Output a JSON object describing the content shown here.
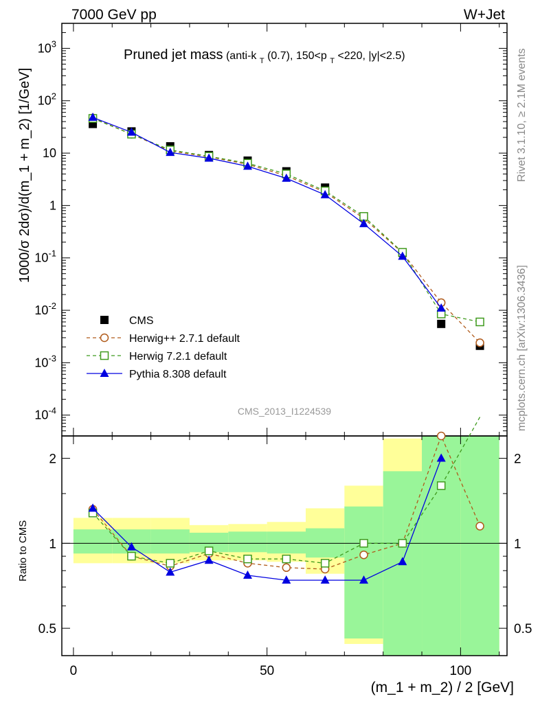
{
  "header": {
    "left": "7000 GeV pp",
    "right": "W+Jet"
  },
  "title": {
    "main": "Pruned jet mass",
    "sub_prefix": "(anti-k",
    "sub_k_sub": "T",
    "sub_mid": "(0.7), 150<p",
    "sub_pt_sub": "T",
    "sub_suffix": "<220, |y|<2.5)"
  },
  "side_labels": {
    "rivet": "Rivet 3.1.10, ≥ 2.1M events",
    "mcplots": "mcplots.cern.ch [arXiv:1306.3436]"
  },
  "watermark": "CMS_2013_I1224539",
  "axes": {
    "ylabel_main": "1000/σ 2dσ)/d(m_1 + m_2) [1/GeV]",
    "ylabel_ratio": "Ratio to CMS",
    "xlabel": "(m_1 + m_2) / 2 [GeV]"
  },
  "legend": [
    {
      "label": "CMS",
      "color": "#000000",
      "marker": "square-filled"
    },
    {
      "label": "Herwig++ 2.7.1 default",
      "color": "#b05a1a",
      "marker": "circle-open"
    },
    {
      "label": "Herwig 7.2.1 default",
      "color": "#3f9a1d",
      "marker": "square-open"
    },
    {
      "label": "Pythia 8.308 default",
      "color": "#0000e0",
      "marker": "triangle-filled"
    }
  ],
  "chart_data": {
    "type": "scatter",
    "x": [
      5,
      15,
      25,
      35,
      45,
      55,
      65,
      75,
      85,
      95,
      105
    ],
    "bin_edges": [
      0,
      10,
      20,
      30,
      40,
      50,
      60,
      70,
      80,
      90,
      100,
      110
    ],
    "xlim": [
      -3,
      112
    ],
    "main": {
      "yscale": "log",
      "ylim": [
        4e-05,
        3000
      ],
      "y_ticks": [
        "10^3",
        "10^2",
        "10",
        "1",
        "10^-1",
        "10^-2",
        "10^-3",
        "10^-4"
      ],
      "series": [
        {
          "name": "CMS",
          "values": [
            36,
            26,
            13.5,
            9.2,
            7.2,
            4.5,
            2.2,
            0.62,
            0.125,
            0.0055,
            0.0021
          ]
        },
        {
          "name": "Herwig++ 2.7.1 default",
          "values": [
            47,
            23,
            11,
            8.5,
            6.1,
            3.7,
            1.8,
            0.57,
            0.125,
            0.014,
            0.0024
          ]
        },
        {
          "name": "Herwig 7.2.1 default",
          "values": [
            46,
            23,
            11.5,
            8.7,
            6.4,
            4.0,
            1.9,
            0.62,
            0.128,
            0.0085,
            0.006
          ]
        },
        {
          "name": "Pythia 8.308 default",
          "values": [
            48,
            25,
            10.3,
            8.0,
            5.6,
            3.3,
            1.6,
            0.45,
            0.107,
            0.011,
            null
          ]
        }
      ]
    },
    "ratio": {
      "yscale": "log",
      "ylim": [
        0.4,
        2.4
      ],
      "y_ticks": [
        0.5,
        1,
        2
      ],
      "x_ticks": [
        0,
        50,
        100
      ],
      "band_inner": [
        [
          0.92,
          1.12
        ],
        [
          0.92,
          1.12
        ],
        [
          0.92,
          1.12
        ],
        [
          0.93,
          1.09
        ],
        [
          0.93,
          1.1
        ],
        [
          0.92,
          1.1
        ],
        [
          0.89,
          1.13
        ],
        [
          0.46,
          1.35
        ],
        [
          0.4,
          1.8
        ],
        [
          0.4,
          2.4
        ],
        [
          0.4,
          2.4
        ]
      ],
      "band_outer": [
        [
          0.85,
          1.23
        ],
        [
          0.85,
          1.23
        ],
        [
          0.85,
          1.23
        ],
        [
          0.87,
          1.16
        ],
        [
          0.87,
          1.17
        ],
        [
          0.86,
          1.19
        ],
        [
          0.78,
          1.33
        ],
        [
          0.44,
          1.6
        ],
        [
          0.4,
          2.35
        ],
        [
          0.4,
          2.4
        ],
        [
          0.4,
          2.2
        ]
      ],
      "series": [
        {
          "name": "Herwig++ 2.7.1 default",
          "values": [
            1.32,
            0.9,
            0.83,
            0.92,
            0.85,
            0.82,
            0.81,
            0.91,
            1.0,
            2.4,
            1.15
          ]
        },
        {
          "name": "Herwig 7.2.1 default",
          "values": [
            1.28,
            0.9,
            0.85,
            0.94,
            0.88,
            0.88,
            0.85,
            1.0,
            1.0,
            1.6,
            2.8
          ]
        },
        {
          "name": "Pythia 8.308 default",
          "values": [
            1.33,
            0.97,
            0.79,
            0.87,
            0.77,
            0.74,
            0.74,
            0.74,
            0.86,
            2.0,
            null
          ]
        }
      ]
    }
  }
}
